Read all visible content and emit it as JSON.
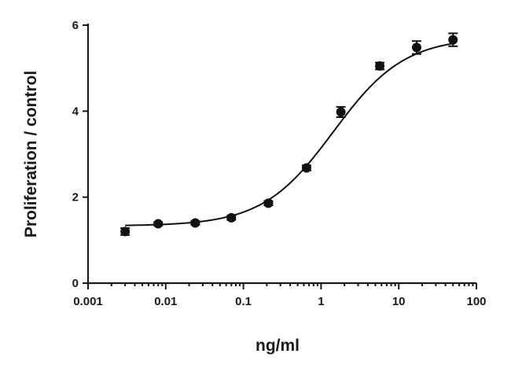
{
  "chart_data": {
    "type": "scatter",
    "title": "",
    "xlabel": "ng/ml",
    "ylabel": "Proliferation / control",
    "xscale": "log",
    "xlim": [
      0.001,
      100
    ],
    "ylim": [
      0,
      6
    ],
    "x_ticks": [
      0.001,
      0.01,
      0.1,
      1,
      10,
      100
    ],
    "x_tick_labels": [
      "0.001",
      "0.01",
      "0.1",
      "1",
      "10",
      "100"
    ],
    "y_ticks": [
      0,
      2,
      4,
      6
    ],
    "y_tick_labels": [
      "0",
      "2",
      "4",
      "6"
    ],
    "grid": false,
    "series": [
      {
        "x": [
          0.003,
          0.008,
          0.024,
          0.07,
          0.21,
          0.65,
          1.8,
          5.7,
          17,
          50
        ],
        "y": [
          1.2,
          1.38,
          1.4,
          1.52,
          1.86,
          2.68,
          3.98,
          5.05,
          5.48,
          5.66
        ],
        "error": [
          0.08,
          0.04,
          0.04,
          0.05,
          0.05,
          0.06,
          0.12,
          0.08,
          0.15,
          0.15
        ]
      }
    ],
    "fit": {
      "model": "sigmoidal dose-response",
      "bottom": 1.33,
      "top": 5.72,
      "log_ec50": 0.16,
      "hill_slope": 0.95
    },
    "colors": {
      "marker": "#111111",
      "axis": "#1a1a1a",
      "text": "#1a1a1a"
    }
  }
}
